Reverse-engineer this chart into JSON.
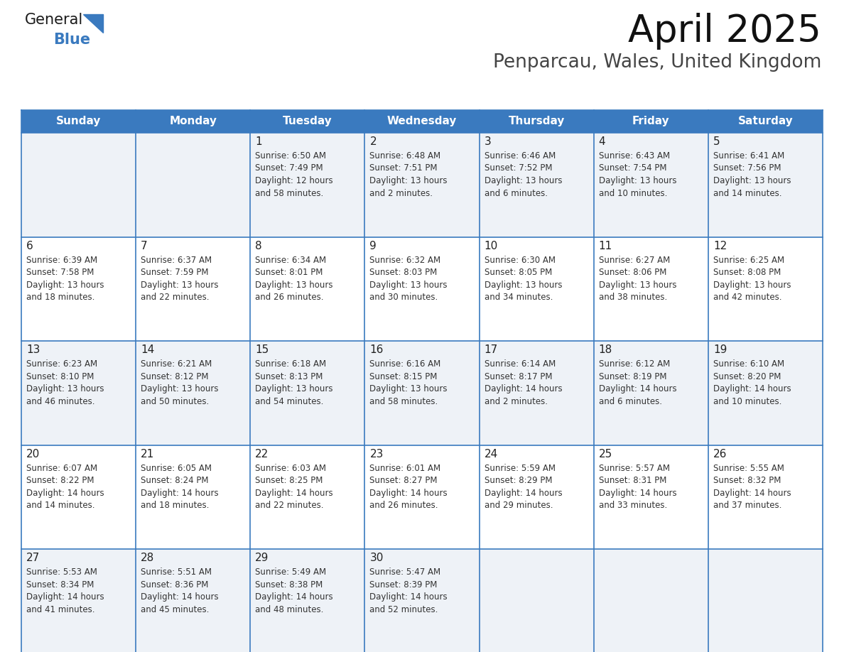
{
  "title": "April 2025",
  "subtitle": "Penparcau, Wales, United Kingdom",
  "header_bg_color": "#3a7abf",
  "header_text_color": "#ffffff",
  "cell_border_color": "#3a7abf",
  "day_number_color": "#3a7abf",
  "cell_text_color": "#333333",
  "bg_color": "#ffffff",
  "row_bg_odd": "#eef2f7",
  "row_bg_even": "#ffffff",
  "day_num_band_odd": "#dde5f0",
  "day_num_band_even": "#f0f0f0",
  "days_of_week": [
    "Sunday",
    "Monday",
    "Tuesday",
    "Wednesday",
    "Thursday",
    "Friday",
    "Saturday"
  ],
  "weeks": [
    [
      {
        "day": "",
        "text": ""
      },
      {
        "day": "",
        "text": ""
      },
      {
        "day": "1",
        "text": "Sunrise: 6:50 AM\nSunset: 7:49 PM\nDaylight: 12 hours\nand 58 minutes."
      },
      {
        "day": "2",
        "text": "Sunrise: 6:48 AM\nSunset: 7:51 PM\nDaylight: 13 hours\nand 2 minutes."
      },
      {
        "day": "3",
        "text": "Sunrise: 6:46 AM\nSunset: 7:52 PM\nDaylight: 13 hours\nand 6 minutes."
      },
      {
        "day": "4",
        "text": "Sunrise: 6:43 AM\nSunset: 7:54 PM\nDaylight: 13 hours\nand 10 minutes."
      },
      {
        "day": "5",
        "text": "Sunrise: 6:41 AM\nSunset: 7:56 PM\nDaylight: 13 hours\nand 14 minutes."
      }
    ],
    [
      {
        "day": "6",
        "text": "Sunrise: 6:39 AM\nSunset: 7:58 PM\nDaylight: 13 hours\nand 18 minutes."
      },
      {
        "day": "7",
        "text": "Sunrise: 6:37 AM\nSunset: 7:59 PM\nDaylight: 13 hours\nand 22 minutes."
      },
      {
        "day": "8",
        "text": "Sunrise: 6:34 AM\nSunset: 8:01 PM\nDaylight: 13 hours\nand 26 minutes."
      },
      {
        "day": "9",
        "text": "Sunrise: 6:32 AM\nSunset: 8:03 PM\nDaylight: 13 hours\nand 30 minutes."
      },
      {
        "day": "10",
        "text": "Sunrise: 6:30 AM\nSunset: 8:05 PM\nDaylight: 13 hours\nand 34 minutes."
      },
      {
        "day": "11",
        "text": "Sunrise: 6:27 AM\nSunset: 8:06 PM\nDaylight: 13 hours\nand 38 minutes."
      },
      {
        "day": "12",
        "text": "Sunrise: 6:25 AM\nSunset: 8:08 PM\nDaylight: 13 hours\nand 42 minutes."
      }
    ],
    [
      {
        "day": "13",
        "text": "Sunrise: 6:23 AM\nSunset: 8:10 PM\nDaylight: 13 hours\nand 46 minutes."
      },
      {
        "day": "14",
        "text": "Sunrise: 6:21 AM\nSunset: 8:12 PM\nDaylight: 13 hours\nand 50 minutes."
      },
      {
        "day": "15",
        "text": "Sunrise: 6:18 AM\nSunset: 8:13 PM\nDaylight: 13 hours\nand 54 minutes."
      },
      {
        "day": "16",
        "text": "Sunrise: 6:16 AM\nSunset: 8:15 PM\nDaylight: 13 hours\nand 58 minutes."
      },
      {
        "day": "17",
        "text": "Sunrise: 6:14 AM\nSunset: 8:17 PM\nDaylight: 14 hours\nand 2 minutes."
      },
      {
        "day": "18",
        "text": "Sunrise: 6:12 AM\nSunset: 8:19 PM\nDaylight: 14 hours\nand 6 minutes."
      },
      {
        "day": "19",
        "text": "Sunrise: 6:10 AM\nSunset: 8:20 PM\nDaylight: 14 hours\nand 10 minutes."
      }
    ],
    [
      {
        "day": "20",
        "text": "Sunrise: 6:07 AM\nSunset: 8:22 PM\nDaylight: 14 hours\nand 14 minutes."
      },
      {
        "day": "21",
        "text": "Sunrise: 6:05 AM\nSunset: 8:24 PM\nDaylight: 14 hours\nand 18 minutes."
      },
      {
        "day": "22",
        "text": "Sunrise: 6:03 AM\nSunset: 8:25 PM\nDaylight: 14 hours\nand 22 minutes."
      },
      {
        "day": "23",
        "text": "Sunrise: 6:01 AM\nSunset: 8:27 PM\nDaylight: 14 hours\nand 26 minutes."
      },
      {
        "day": "24",
        "text": "Sunrise: 5:59 AM\nSunset: 8:29 PM\nDaylight: 14 hours\nand 29 minutes."
      },
      {
        "day": "25",
        "text": "Sunrise: 5:57 AM\nSunset: 8:31 PM\nDaylight: 14 hours\nand 33 minutes."
      },
      {
        "day": "26",
        "text": "Sunrise: 5:55 AM\nSunset: 8:32 PM\nDaylight: 14 hours\nand 37 minutes."
      }
    ],
    [
      {
        "day": "27",
        "text": "Sunrise: 5:53 AM\nSunset: 8:34 PM\nDaylight: 14 hours\nand 41 minutes."
      },
      {
        "day": "28",
        "text": "Sunrise: 5:51 AM\nSunset: 8:36 PM\nDaylight: 14 hours\nand 45 minutes."
      },
      {
        "day": "29",
        "text": "Sunrise: 5:49 AM\nSunset: 8:38 PM\nDaylight: 14 hours\nand 48 minutes."
      },
      {
        "day": "30",
        "text": "Sunrise: 5:47 AM\nSunset: 8:39 PM\nDaylight: 14 hours\nand 52 minutes."
      },
      {
        "day": "",
        "text": ""
      },
      {
        "day": "",
        "text": ""
      },
      {
        "day": "",
        "text": ""
      }
    ]
  ],
  "logo_text1": "General",
  "logo_text2": "Blue",
  "logo_color1": "#1a1a1a",
  "logo_color2": "#3a7abf",
  "logo_triangle_color": "#3a7abf"
}
